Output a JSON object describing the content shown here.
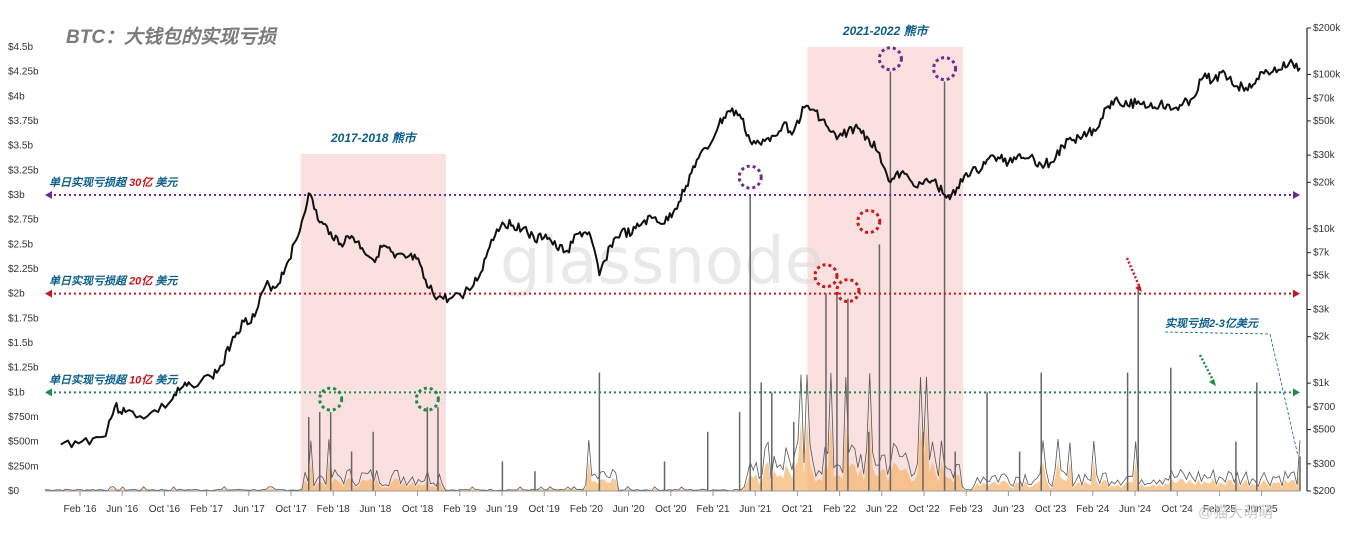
{
  "chart_data": {
    "type": "line",
    "title": "BTC：大钱包的实现亏损",
    "watermark": "glassnode",
    "corner_mark": "@猫大萌萌",
    "x_ticks": [
      "Feb '16",
      "Jun '16",
      "Oct '16",
      "Feb '17",
      "Jun '17",
      "Oct '17",
      "Feb '18",
      "Jun '18",
      "Oct '18",
      "Feb '19",
      "Jun '19",
      "Oct '19",
      "Feb '20",
      "Jun '20",
      "Oct '20",
      "Feb '21",
      "Jun '21",
      "Oct '21",
      "Feb '22",
      "Jun '22",
      "Oct '22",
      "Feb '23",
      "Jun '23",
      "Oct '23",
      "Feb '24",
      "Jun '24",
      "Oct '24",
      "Feb '25",
      "Jun '25"
    ],
    "left_axis": {
      "ticks": [
        "$0",
        "$250m",
        "$500m",
        "$750m",
        "$1b",
        "$1.25b",
        "$1.5b",
        "$1.75b",
        "$2b",
        "$2.25b",
        "$2.5b",
        "$2.75b",
        "$3b",
        "$3.25b",
        "$3.5b",
        "$3.75b",
        "$4b",
        "$4.25b",
        "$4.5b"
      ],
      "ylim": [
        0,
        4.5
      ]
    },
    "right_axis": {
      "scale": "log",
      "ticks": [
        "$200",
        "$300",
        "$500",
        "$700",
        "$1k",
        "$2k",
        "$3k",
        "$5k",
        "$7k",
        "$10k",
        "$20k",
        "$30k",
        "$50k",
        "$70k",
        "$100k",
        "$200k"
      ],
      "tick_values": [
        200,
        300,
        500,
        700,
        1000,
        2000,
        3000,
        5000,
        7000,
        10000,
        20000,
        30000,
        50000,
        70000,
        100000,
        200000
      ],
      "ylim": [
        200,
        200000
      ]
    },
    "price_series": {
      "name": "BTC",
      "color": "#111111",
      "points": [
        [
          "2016-01",
          400
        ],
        [
          "2016-03",
          420
        ],
        [
          "2016-05",
          450
        ],
        [
          "2016-06",
          700
        ],
        [
          "2016-07",
          650
        ],
        [
          "2016-09",
          610
        ],
        [
          "2016-11",
          740
        ],
        [
          "2016-12",
          900
        ],
        [
          "2017-01",
          980
        ],
        [
          "2017-03",
          1100
        ],
        [
          "2017-04",
          1300
        ],
        [
          "2017-05",
          2000
        ],
        [
          "2017-06",
          2500
        ],
        [
          "2017-07",
          2700
        ],
        [
          "2017-08",
          4300
        ],
        [
          "2017-09",
          4200
        ],
        [
          "2017-10",
          6000
        ],
        [
          "2017-11",
          9000
        ],
        [
          "2017-12",
          17000
        ],
        [
          "2018-01",
          11000
        ],
        [
          "2018-02",
          9500
        ],
        [
          "2018-03",
          8000
        ],
        [
          "2018-04",
          9000
        ],
        [
          "2018-05",
          7500
        ],
        [
          "2018-06",
          6300
        ],
        [
          "2018-07",
          7800
        ],
        [
          "2018-08",
          6500
        ],
        [
          "2018-09",
          6500
        ],
        [
          "2018-10",
          6400
        ],
        [
          "2018-11",
          4200
        ],
        [
          "2018-12",
          3600
        ],
        [
          "2019-01",
          3500
        ],
        [
          "2019-03",
          4000
        ],
        [
          "2019-04",
          5200
        ],
        [
          "2019-05",
          8500
        ],
        [
          "2019-06",
          11000
        ],
        [
          "2019-07",
          10500
        ],
        [
          "2019-08",
          10200
        ],
        [
          "2019-09",
          8300
        ],
        [
          "2019-10",
          9200
        ],
        [
          "2019-11",
          7500
        ],
        [
          "2019-12",
          7200
        ],
        [
          "2020-01",
          9300
        ],
        [
          "2020-02",
          9500
        ],
        [
          "2020-03",
          5000
        ],
        [
          "2020-04",
          7800
        ],
        [
          "2020-05",
          9500
        ],
        [
          "2020-06",
          9300
        ],
        [
          "2020-07",
          11000
        ],
        [
          "2020-08",
          11800
        ],
        [
          "2020-09",
          10800
        ],
        [
          "2020-10",
          13500
        ],
        [
          "2020-11",
          19000
        ],
        [
          "2020-12",
          28000
        ],
        [
          "2021-01",
          33000
        ],
        [
          "2021-02",
          47000
        ],
        [
          "2021-03",
          58000
        ],
        [
          "2021-04",
          55000
        ],
        [
          "2021-05",
          37000
        ],
        [
          "2021-06",
          35000
        ],
        [
          "2021-07",
          40000
        ],
        [
          "2021-08",
          47000
        ],
        [
          "2021-09",
          43000
        ],
        [
          "2021-10",
          61000
        ],
        [
          "2021-11",
          58000
        ],
        [
          "2021-12",
          47000
        ],
        [
          "2022-01",
          38000
        ],
        [
          "2022-02",
          43000
        ],
        [
          "2022-03",
          45000
        ],
        [
          "2022-04",
          38000
        ],
        [
          "2022-05",
          31000
        ],
        [
          "2022-06",
          20000
        ],
        [
          "2022-07",
          23000
        ],
        [
          "2022-08",
          20000
        ],
        [
          "2022-09",
          19500
        ],
        [
          "2022-10",
          20500
        ],
        [
          "2022-11",
          16500
        ],
        [
          "2022-12",
          16800
        ],
        [
          "2023-01",
          23000
        ],
        [
          "2023-02",
          23500
        ],
        [
          "2023-03",
          28000
        ],
        [
          "2023-04",
          29000
        ],
        [
          "2023-05",
          27000
        ],
        [
          "2023-06",
          30500
        ],
        [
          "2023-07",
          29300
        ],
        [
          "2023-08",
          26000
        ],
        [
          "2023-09",
          27000
        ],
        [
          "2023-10",
          34500
        ],
        [
          "2023-11",
          37700
        ],
        [
          "2023-12",
          42500
        ],
        [
          "2024-01",
          43000
        ],
        [
          "2024-02",
          61000
        ],
        [
          "2024-03",
          71000
        ],
        [
          "2024-04",
          63000
        ],
        [
          "2024-05",
          67000
        ],
        [
          "2024-06",
          62000
        ],
        [
          "2024-07",
          64000
        ],
        [
          "2024-08",
          59000
        ],
        [
          "2024-09",
          63000
        ],
        [
          "2024-10",
          70000
        ],
        [
          "2024-11",
          96000
        ],
        [
          "2024-12",
          93000
        ],
        [
          "2025-01",
          102000
        ],
        [
          "2025-02",
          84000
        ],
        [
          "2025-03",
          82000
        ],
        [
          "2025-04",
          94000
        ],
        [
          "2025-05",
          104000
        ],
        [
          "2025-06",
          107000
        ],
        [
          "2025-07",
          118000
        ],
        [
          "2025-08",
          110000
        ]
      ]
    },
    "loss_series": {
      "name": "实现亏损",
      "color": "#555555",
      "fill": "#f5b46b",
      "spikes": [
        [
          "2017-12",
          0.75
        ],
        [
          "2018-01",
          0.8
        ],
        [
          "2018-02",
          0.8
        ],
        [
          "2018-04",
          0.4
        ],
        [
          "2018-06",
          0.6
        ],
        [
          "2018-11",
          0.85
        ],
        [
          "2018-12",
          0.85
        ],
        [
          "2019-06",
          0.3
        ],
        [
          "2019-09",
          0.2
        ],
        [
          "2020-03",
          1.2
        ],
        [
          "2020-09",
          0.3
        ],
        [
          "2021-01",
          0.6
        ],
        [
          "2021-04",
          0.8
        ],
        [
          "2021-05",
          3.0
        ],
        [
          "2021-06",
          1.1
        ],
        [
          "2021-07",
          1.0
        ],
        [
          "2021-09",
          0.7
        ],
        [
          "2021-12",
          2.0
        ],
        [
          "2022-01",
          2.0
        ],
        [
          "2022-02",
          1.95
        ],
        [
          "2022-04",
          0.6
        ],
        [
          "2022-05",
          2.5
        ],
        [
          "2022-06",
          4.25
        ],
        [
          "2022-09",
          0.6
        ],
        [
          "2022-11",
          4.15
        ],
        [
          "2022-12",
          0.4
        ],
        [
          "2023-03",
          1.0
        ],
        [
          "2023-06",
          0.4
        ],
        [
          "2023-08",
          1.2
        ],
        [
          "2024-04",
          1.2
        ],
        [
          "2024-05",
          2.05
        ],
        [
          "2024-08",
          1.25
        ],
        [
          "2025-02",
          0.5
        ],
        [
          "2025-04",
          1.1
        ],
        [
          "2025-08",
          0.35
        ]
      ]
    },
    "reference_lines": [
      {
        "label_pre": "单日实现亏损超 ",
        "label_num": "30亿",
        "label_post": " 美元",
        "value": 3.0,
        "color": "#6a2c91"
      },
      {
        "label_pre": "单日实现亏损超 ",
        "label_num": "20亿",
        "label_post": " 美元",
        "value": 2.0,
        "color": "#c8181e"
      },
      {
        "label_pre": "单日实现亏损超 ",
        "label_num": "10亿",
        "label_post": " 美元",
        "value": 1.0,
        "color": "#1e8a4c"
      }
    ],
    "bear_markets": [
      {
        "label": "2017-2018 熊市",
        "start": "2017-12",
        "end": "2018-12"
      },
      {
        "label": "2021-2022 熊市",
        "start": "2021-11",
        "end": "2022-12"
      }
    ],
    "annotations": [
      {
        "text": "实现亏损2-3亿美元",
        "color": "#0b5f8a"
      }
    ],
    "highlight_circles": [
      {
        "date": "2018-02",
        "value": 0.85,
        "color": "#1e8a4c"
      },
      {
        "date": "2018-11",
        "value": 0.85,
        "color": "#1e8a4c"
      },
      {
        "date": "2021-05",
        "value": 3.1,
        "color": "#6a2c91"
      },
      {
        "date": "2021-12",
        "value": 2.1,
        "color": "#c8181e"
      },
      {
        "date": "2022-02",
        "value": 1.95,
        "color": "#c8181e"
      },
      {
        "date": "2022-04",
        "value": 2.65,
        "color": "#c8181e"
      },
      {
        "date": "2022-06",
        "value": 4.3,
        "color": "#6a2c91"
      },
      {
        "date": "2022-11",
        "value": 4.2,
        "color": "#6a2c91"
      }
    ]
  }
}
